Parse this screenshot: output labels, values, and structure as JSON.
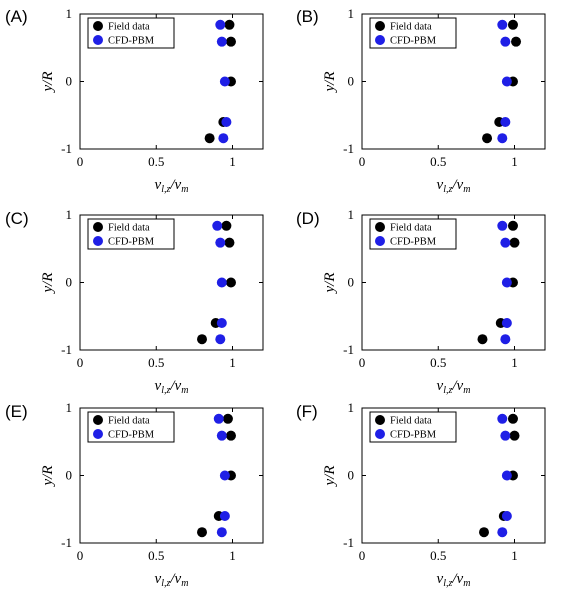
{
  "chart_data": [
    {
      "type": "scatter",
      "panel": "(A)",
      "xlabel": "v_{l,z}/v_m",
      "ylabel": "y/R",
      "xlim": [
        0,
        1.2
      ],
      "ylim": [
        -1,
        1
      ],
      "xticks": [
        "0",
        "0.5",
        "1"
      ],
      "yticks": [
        "-1",
        "0",
        "1"
      ],
      "legend_position": "top-left",
      "series": [
        {
          "name": "Field data",
          "color": "#000000",
          "points": [
            {
              "x": 0.98,
              "y": 0.84
            },
            {
              "x": 0.99,
              "y": 0.59
            },
            {
              "x": 0.99,
              "y": 0.0
            },
            {
              "x": 0.94,
              "y": -0.6
            },
            {
              "x": 0.85,
              "y": -0.84
            }
          ]
        },
        {
          "name": "CFD-PBM",
          "color": "#1f1fe6",
          "points": [
            {
              "x": 0.92,
              "y": 0.84
            },
            {
              "x": 0.93,
              "y": 0.59
            },
            {
              "x": 0.95,
              "y": 0.0
            },
            {
              "x": 0.96,
              "y": -0.6
            },
            {
              "x": 0.94,
              "y": -0.84
            }
          ]
        }
      ]
    },
    {
      "type": "scatter",
      "panel": "(B)",
      "xlabel": "v_{l,z}/v_m",
      "ylabel": "y/R",
      "xlim": [
        0,
        1.2
      ],
      "ylim": [
        -1,
        1
      ],
      "xticks": [
        "0",
        "0.5",
        "1"
      ],
      "yticks": [
        "-1",
        "0",
        "1"
      ],
      "legend_position": "top-left",
      "series": [
        {
          "name": "Field data",
          "color": "#000000",
          "points": [
            {
              "x": 0.99,
              "y": 0.84
            },
            {
              "x": 1.01,
              "y": 0.59
            },
            {
              "x": 0.99,
              "y": 0.0
            },
            {
              "x": 0.9,
              "y": -0.6
            },
            {
              "x": 0.82,
              "y": -0.84
            }
          ]
        },
        {
          "name": "CFD-PBM",
          "color": "#1f1fe6",
          "points": [
            {
              "x": 0.92,
              "y": 0.84
            },
            {
              "x": 0.94,
              "y": 0.59
            },
            {
              "x": 0.95,
              "y": 0.0
            },
            {
              "x": 0.94,
              "y": -0.6
            },
            {
              "x": 0.92,
              "y": -0.84
            }
          ]
        }
      ]
    },
    {
      "type": "scatter",
      "panel": "(C)",
      "xlabel": "v_{l,z}/v_m",
      "ylabel": "y/R",
      "xlim": [
        0,
        1.2
      ],
      "ylim": [
        -1,
        1
      ],
      "xticks": [
        "0",
        "0.5",
        "1"
      ],
      "yticks": [
        "-1",
        "0",
        "1"
      ],
      "legend_position": "top-left",
      "series": [
        {
          "name": "Field data",
          "color": "#000000",
          "points": [
            {
              "x": 0.96,
              "y": 0.84
            },
            {
              "x": 0.98,
              "y": 0.59
            },
            {
              "x": 0.99,
              "y": 0.0
            },
            {
              "x": 0.89,
              "y": -0.6
            },
            {
              "x": 0.8,
              "y": -0.84
            }
          ]
        },
        {
          "name": "CFD-PBM",
          "color": "#1f1fe6",
          "points": [
            {
              "x": 0.9,
              "y": 0.84
            },
            {
              "x": 0.92,
              "y": 0.59
            },
            {
              "x": 0.93,
              "y": 0.0
            },
            {
              "x": 0.93,
              "y": -0.6
            },
            {
              "x": 0.92,
              "y": -0.84
            }
          ]
        }
      ]
    },
    {
      "type": "scatter",
      "panel": "(D)",
      "xlabel": "v_{l,z}/v_m",
      "ylabel": "y/R",
      "xlim": [
        0,
        1.2
      ],
      "ylim": [
        -1,
        1
      ],
      "xticks": [
        "0",
        "0.5",
        "1"
      ],
      "yticks": [
        "-1",
        "0",
        "1"
      ],
      "legend_position": "top-left",
      "series": [
        {
          "name": "Field data",
          "color": "#000000",
          "points": [
            {
              "x": 0.99,
              "y": 0.84
            },
            {
              "x": 1.0,
              "y": 0.59
            },
            {
              "x": 0.99,
              "y": 0.0
            },
            {
              "x": 0.91,
              "y": -0.6
            },
            {
              "x": 0.79,
              "y": -0.84
            }
          ]
        },
        {
          "name": "CFD-PBM",
          "color": "#1f1fe6",
          "points": [
            {
              "x": 0.92,
              "y": 0.84
            },
            {
              "x": 0.94,
              "y": 0.59
            },
            {
              "x": 0.95,
              "y": 0.0
            },
            {
              "x": 0.95,
              "y": -0.6
            },
            {
              "x": 0.94,
              "y": -0.84
            }
          ]
        }
      ]
    },
    {
      "type": "scatter",
      "panel": "(E)",
      "xlabel": "v_{l,z}/v_m",
      "ylabel": "y/R",
      "xlim": [
        0,
        1.2
      ],
      "ylim": [
        -1,
        1
      ],
      "xticks": [
        "0",
        "0.5",
        "1"
      ],
      "yticks": [
        "-1",
        "0",
        "1"
      ],
      "legend_position": "top-left",
      "series": [
        {
          "name": "Field data",
          "color": "#000000",
          "points": [
            {
              "x": 0.97,
              "y": 0.84
            },
            {
              "x": 0.99,
              "y": 0.59
            },
            {
              "x": 0.99,
              "y": 0.0
            },
            {
              "x": 0.91,
              "y": -0.6
            },
            {
              "x": 0.8,
              "y": -0.84
            }
          ]
        },
        {
          "name": "CFD-PBM",
          "color": "#1f1fe6",
          "points": [
            {
              "x": 0.91,
              "y": 0.84
            },
            {
              "x": 0.93,
              "y": 0.59
            },
            {
              "x": 0.95,
              "y": 0.0
            },
            {
              "x": 0.95,
              "y": -0.6
            },
            {
              "x": 0.93,
              "y": -0.84
            }
          ]
        }
      ]
    },
    {
      "type": "scatter",
      "panel": "(F)",
      "xlabel": "v_{l,z}/v_m",
      "ylabel": "y/R",
      "xlim": [
        0,
        1.2
      ],
      "ylim": [
        -1,
        1
      ],
      "xticks": [
        "0",
        "0.5",
        "1"
      ],
      "yticks": [
        "-1",
        "0",
        "1"
      ],
      "legend_position": "top-left",
      "series": [
        {
          "name": "Field data",
          "color": "#000000",
          "points": [
            {
              "x": 0.99,
              "y": 0.84
            },
            {
              "x": 1.0,
              "y": 0.59
            },
            {
              "x": 0.99,
              "y": 0.0
            },
            {
              "x": 0.93,
              "y": -0.6
            },
            {
              "x": 0.8,
              "y": -0.84
            }
          ]
        },
        {
          "name": "CFD-PBM",
          "color": "#1f1fe6",
          "points": [
            {
              "x": 0.92,
              "y": 0.84
            },
            {
              "x": 0.94,
              "y": 0.59
            },
            {
              "x": 0.95,
              "y": 0.0
            },
            {
              "x": 0.95,
              "y": -0.6
            },
            {
              "x": 0.92,
              "y": -0.84
            }
          ]
        }
      ]
    }
  ]
}
